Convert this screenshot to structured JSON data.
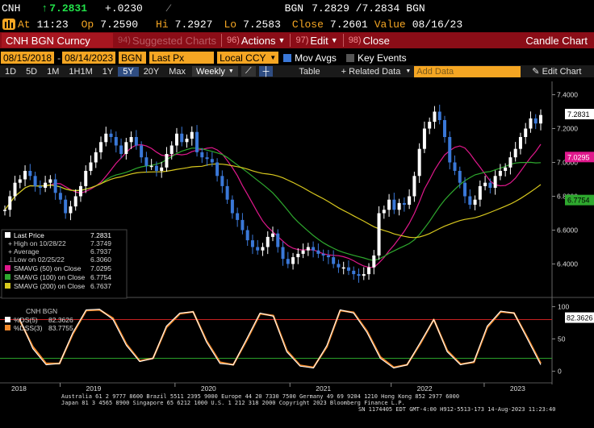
{
  "quote": {
    "ticker": "CNH",
    "arrow": "↑",
    "last": "7.2831",
    "change": "+.0230",
    "source": "BGN",
    "bid_ask": "7.2829 /7.2834",
    "source2": "BGN",
    "at_label": "At",
    "time": "11:23",
    "op_label": "Op",
    "open": "7.2590",
    "hi_label": "Hi",
    "high": "7.2927",
    "lo_label": "Lo",
    "low": "7.2583",
    "close_label": "Close",
    "close": "7.2601",
    "value_label": "Value",
    "value_date": "08/16/23"
  },
  "command": {
    "security": "CNH BGN Curncy",
    "suggested_num": "94)",
    "suggested": "Suggested Charts",
    "actions_num": "96)",
    "actions": "Actions",
    "edit_num": "97)",
    "edit": "Edit",
    "close_num": "98)",
    "close": "Close",
    "chart_type": "Candle Chart"
  },
  "params": {
    "start_date": "08/15/2018",
    "end_date": "08/14/2023",
    "source": "BGN",
    "field": "Last Px",
    "currency": "Local CCY",
    "mov_avgs": "Mov Avgs",
    "key_events": "Key Events"
  },
  "periods": {
    "items": [
      "1D",
      "5D",
      "1M",
      "1H1M",
      "1Y",
      "5Y",
      "20Y",
      "Max"
    ],
    "selected": "5Y",
    "frequency": "Weekly",
    "table": "Table",
    "related": "+ Related Data",
    "add_data": "Add Data",
    "edit_chart": "Edit Chart"
  },
  "legend": {
    "last_price_label": "Last Price",
    "last_price": "7.2831",
    "high_label": "High on 10/28/22",
    "high": "7.3749",
    "average_label": "Average",
    "average": "6.7937",
    "low_label": "Low on 02/25/22",
    "low": "6.3060",
    "sma50_label": "SMAVG (50)  on Close",
    "sma50": "7.0295",
    "sma100_label": "SMAVG (100) on Close",
    "sma100": "6.7754",
    "sma200_label": "SMAVG (200) on Close",
    "sma200": "6.7637"
  },
  "osc_legend": {
    "title": "CNH BGN",
    "ds_label": "%DS(5)",
    "ds": "82.3626",
    "dss_label": "%DSS(3)",
    "dss": "83.7755"
  },
  "footer": {
    "line1": "Australia 61 2 9777 8600 Brazil 5511 2395 9000 Europe 44 20 7330 7500 Germany 49 69 9204 1210 Hong Kong 852 2977 6000",
    "line2": "Japan 81 3 4565 8900       Singapore 65 6212 1000          U.S. 1 212 318 2000          Copyright 2023 Bloomberg Finance L.P.",
    "line3": "SN 1174405 EDT  GMT-4:00 H912-5513-173 14-Aug-2023 11:23:40"
  },
  "colors": {
    "up": "#ffffff",
    "down": "#3a78d8",
    "sma50": "#e0188c",
    "sma100": "#2ea82e",
    "sma200": "#d8c81e",
    "stoch_fast": "#ffffff",
    "stoch_slow": "#f28a2c"
  },
  "chart_data": [
    {
      "type": "candlestick",
      "title": "",
      "x_ticks": [
        "2018",
        "2019",
        "2020",
        "2021",
        "2022",
        "2023"
      ],
      "y_ticks": [
        6.4,
        6.6,
        6.8,
        7.0,
        7.2,
        7.4
      ],
      "ylim": [
        6.25,
        7.45
      ],
      "series": [
        {
          "name": "Last Price",
          "values": [
            6.72,
            6.8,
            6.88,
            6.9,
            6.95,
            6.92,
            6.86,
            6.85,
            6.88,
            6.9,
            6.82,
            6.78,
            6.7,
            6.74,
            6.8,
            6.86,
            6.95,
            7.0,
            7.06,
            7.12,
            7.17,
            7.15,
            7.1,
            7.05,
            7.12,
            7.15,
            7.1,
            7.03,
            6.98,
            6.98,
            6.95,
            6.97,
            7.05,
            7.1,
            7.17,
            7.12,
            7.14,
            7.18,
            7.06,
            7.03,
            7.02,
            7.0,
            6.92,
            6.86,
            6.78,
            6.7,
            6.66,
            6.6,
            6.54,
            6.5,
            6.48,
            6.5,
            6.56,
            6.58,
            6.5,
            6.43,
            6.4,
            6.44,
            6.46,
            6.48,
            6.5,
            6.48,
            6.46,
            6.45,
            6.44,
            6.4,
            6.38,
            6.38,
            6.36,
            6.34,
            6.33,
            6.34,
            6.38,
            6.45,
            6.7,
            6.72,
            6.78,
            6.72,
            6.76,
            6.75,
            6.8,
            6.92,
            7.08,
            7.2,
            7.24,
            7.3,
            7.25,
            7.15,
            7.0,
            6.95,
            6.88,
            6.8,
            6.75,
            6.78,
            6.86,
            6.88,
            6.85,
            6.92,
            6.95,
            6.97,
            7.03,
            7.08,
            7.15,
            7.2,
            7.26,
            7.23,
            7.28
          ]
        },
        {
          "name": "SMAVG (50) on Close",
          "values": [
            7.0295
          ]
        },
        {
          "name": "SMAVG (100) on Close",
          "values": [
            6.7754
          ]
        },
        {
          "name": "SMAVG (200) on Close",
          "values": [
            6.7637
          ]
        }
      ],
      "annotations": {
        "last": 7.2831,
        "sma50": 7.0295,
        "sma100": 6.7754
      }
    },
    {
      "type": "line",
      "title": "",
      "y_ticks": [
        0,
        50,
        100
      ],
      "ylim": [
        -8,
        108
      ],
      "reference_lines": [
        80,
        20
      ],
      "series": [
        {
          "name": "%DS(5)",
          "values": [
            82,
            35,
            10,
            12,
            60,
            95,
            96,
            80,
            40,
            15,
            20,
            70,
            90,
            92,
            45,
            12,
            10,
            50,
            90,
            85,
            30,
            8,
            5,
            40,
            95,
            90,
            60,
            20,
            5,
            10,
            45,
            80,
            30,
            10,
            15,
            70,
            93,
            90,
            50,
            10
          ]
        },
        {
          "name": "%DSS(3)",
          "values": [
            80,
            38,
            12,
            12,
            58,
            94,
            95,
            82,
            42,
            16,
            20,
            68,
            89,
            92,
            47,
            14,
            10,
            48,
            89,
            86,
            32,
            9,
            6,
            38,
            94,
            91,
            62,
            22,
            6,
            10,
            43,
            80,
            32,
            11,
            14,
            68,
            92,
            90,
            52,
            12
          ]
        }
      ],
      "annotations": {
        "last": 82.3626
      }
    }
  ]
}
